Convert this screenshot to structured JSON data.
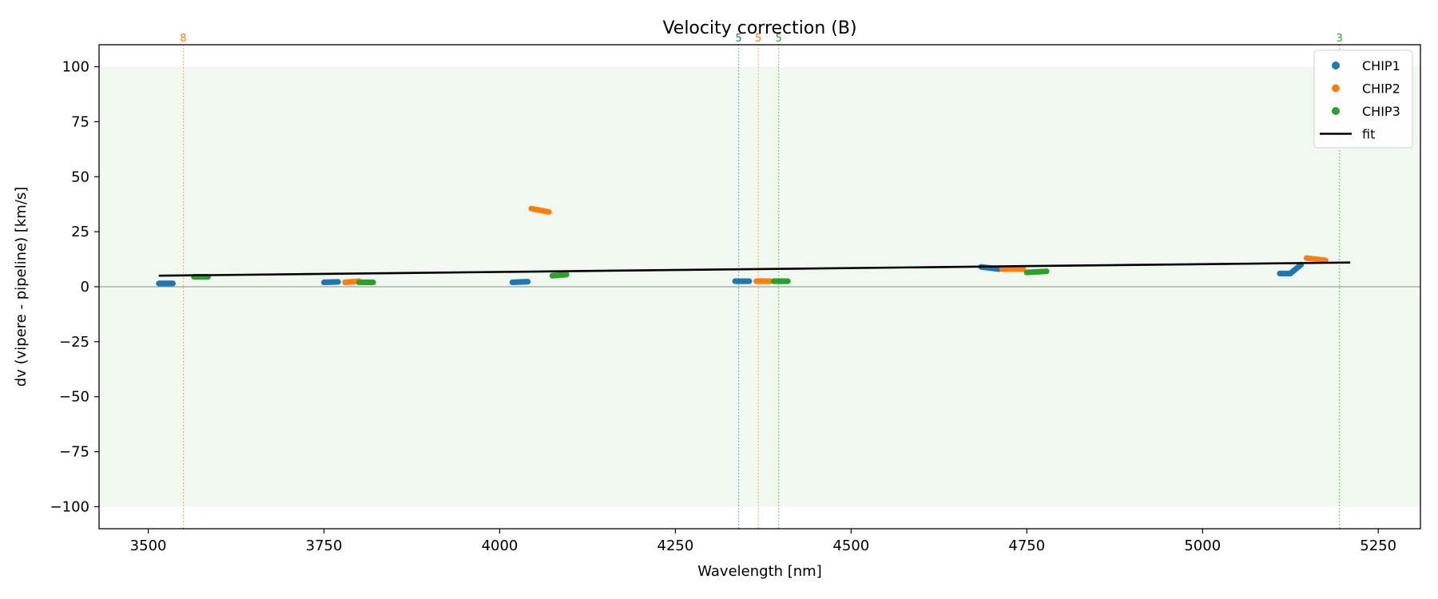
{
  "chart_data": {
    "type": "scatter",
    "title": "Velocity correction (B)",
    "xlabel": "Wavelength [nm]",
    "ylabel": "dv (vipere - pipeline) [km/s]",
    "xlim": [
      3430,
      5310
    ],
    "ylim": [
      -110,
      110
    ],
    "xticks": [
      3500,
      3750,
      4000,
      4250,
      4500,
      4750,
      5000,
      5250
    ],
    "yticks": [
      100,
      75,
      50,
      25,
      0,
      -25,
      -50,
      -75,
      -100
    ],
    "grid": false,
    "legend_placement": "top-right",
    "shaded_band": {
      "y": [
        -100,
        100
      ],
      "color": "#2ca02c"
    },
    "zero_line": 0,
    "colors": {
      "CHIP1": "#1f77b4",
      "CHIP2": "#ff7f0e",
      "CHIP3": "#2ca02c",
      "fit": "#000000"
    },
    "series": [
      {
        "name": "CHIP1",
        "color": "#1f77b4",
        "segments": [
          {
            "x": [
              3515,
              3535
            ],
            "y": [
              1.5,
              1.5
            ]
          },
          {
            "x": [
              3750,
              3770
            ],
            "y": [
              2,
              2.2
            ]
          },
          {
            "x": [
              4018,
              4040
            ],
            "y": [
              2,
              2.3
            ]
          },
          {
            "x": [
              4335,
              4355
            ],
            "y": [
              2.5,
              2.5
            ]
          },
          {
            "x": [
              4685,
              4710
            ],
            "y": [
              9,
              8
            ]
          },
          {
            "x": [
              5110,
              5125,
              5140
            ],
            "y": [
              6,
              6,
              10
            ]
          }
        ]
      },
      {
        "name": "CHIP2",
        "color": "#ff7f0e",
        "segments": [
          {
            "x": [
              3780,
              3800
            ],
            "y": [
              2,
              2.5
            ]
          },
          {
            "x": [
              4045,
              4070
            ],
            "y": [
              35.5,
              34
            ]
          },
          {
            "x": [
              4365,
              4385
            ],
            "y": [
              2.5,
              2.5
            ]
          },
          {
            "x": [
              4715,
              4745
            ],
            "y": [
              8,
              8
            ]
          },
          {
            "x": [
              5148,
              5175
            ],
            "y": [
              13,
              12
            ]
          }
        ]
      },
      {
        "name": "CHIP3",
        "color": "#2ca02c",
        "segments": [
          {
            "x": [
              3565,
              3585
            ],
            "y": [
              4.5,
              4.5
            ]
          },
          {
            "x": [
              3800,
              3820
            ],
            "y": [
              2,
              2
            ]
          },
          {
            "x": [
              4075,
              4095
            ],
            "y": [
              5,
              5.5
            ]
          },
          {
            "x": [
              4390,
              4410
            ],
            "y": [
              2.5,
              2.5
            ]
          },
          {
            "x": [
              4750,
              4778
            ],
            "y": [
              6.5,
              7
            ]
          }
        ]
      }
    ],
    "fit": {
      "name": "fit",
      "x": [
        3515,
        5210
      ],
      "y": [
        5,
        11
      ]
    },
    "markers": [
      {
        "x": 3550,
        "label": "8",
        "color": "#ff7f0e"
      },
      {
        "x": 4340,
        "label": "5",
        "color": "#1f77b4"
      },
      {
        "x": 4368,
        "label": "5",
        "color": "#ff7f0e"
      },
      {
        "x": 4397,
        "label": "5",
        "color": "#2ca02c"
      },
      {
        "x": 5195,
        "label": "3",
        "color": "#2ca02c"
      }
    ]
  }
}
